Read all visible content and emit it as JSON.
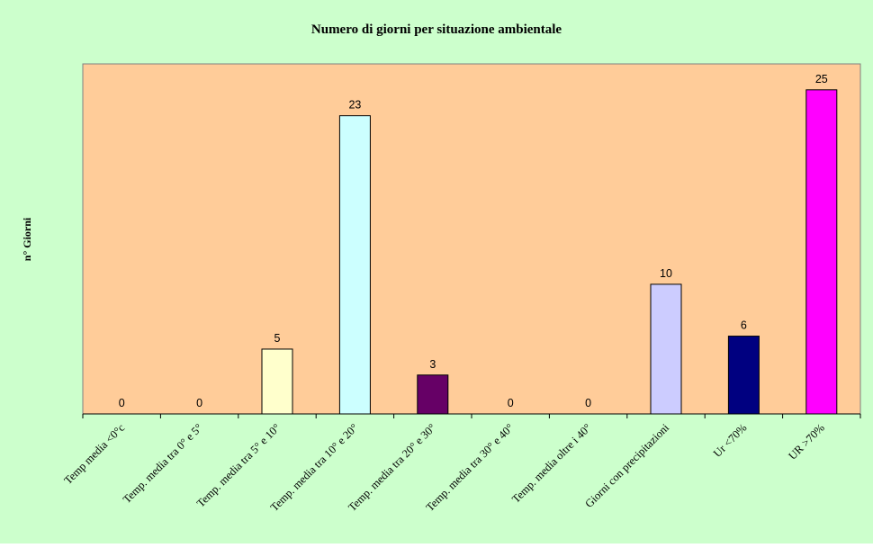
{
  "chart_data": {
    "type": "bar",
    "title": "Numero di giorni per situazione ambientale",
    "xlabel": "",
    "ylabel": "n° Giorni",
    "categories": [
      "Temp media <0°c",
      "Temp. media tra 0° e 5°",
      "Temp. media tra 5° e 10°",
      "Temp. media tra 10° e 20°",
      "Temp. media tra 20° e 30°",
      "Temp. media tra 30° e 40°",
      "Temp. media oltre i 40°",
      "Giorni con precipitazioni",
      "Ur <70%",
      "UR >70%"
    ],
    "values": [
      0,
      0,
      5,
      23,
      3,
      0,
      0,
      10,
      6,
      25
    ],
    "bar_colors": [
      "#ffffff",
      "#ffffff",
      "#ffffcc",
      "#ccffff",
      "#660066",
      "#ffffff",
      "#ffffff",
      "#ccccff",
      "#000080",
      "#ff00ff"
    ],
    "ylim": [
      0,
      27
    ],
    "grid": false,
    "legend": "none",
    "colors": {
      "background": "#ccffcc",
      "plot_area": "#ffcc99",
      "axis": "#000000"
    }
  }
}
